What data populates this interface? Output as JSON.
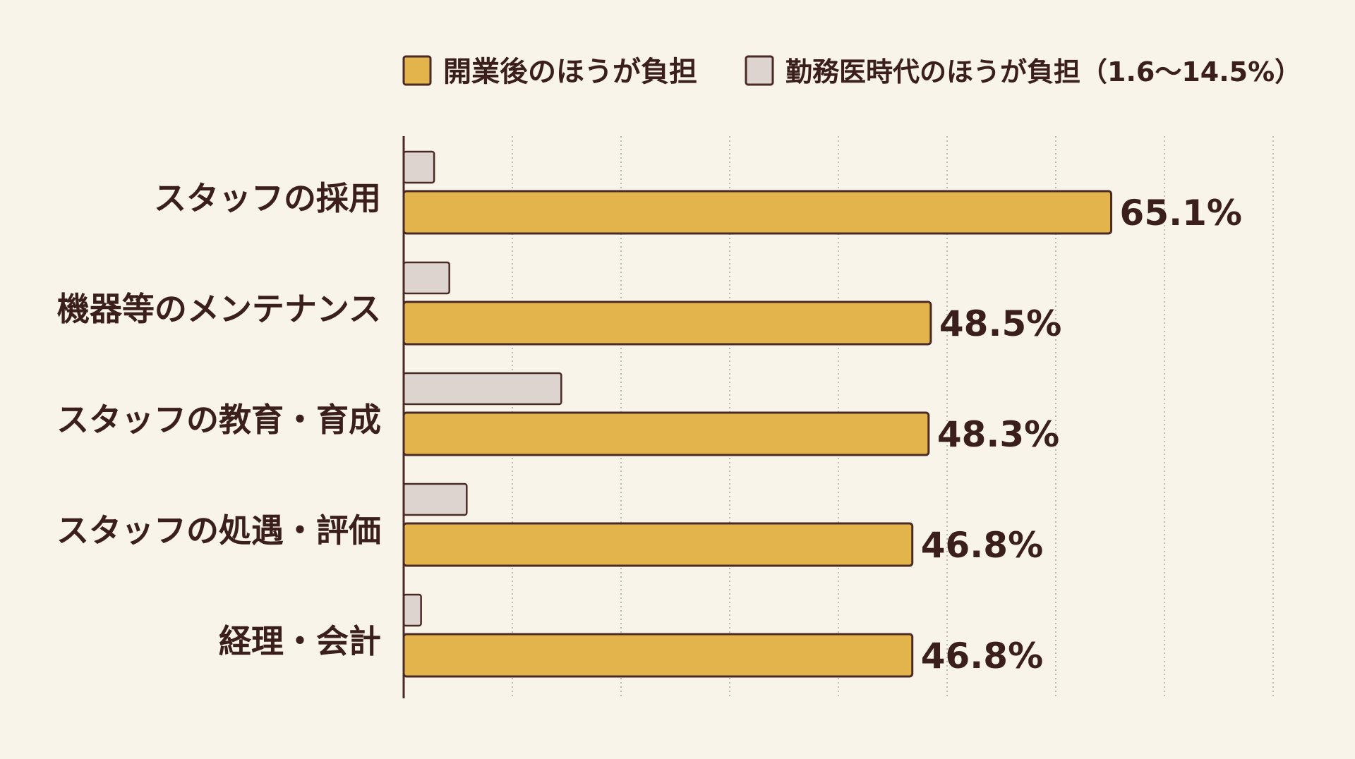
{
  "colors": {
    "background": "#f9f4ea",
    "after_opening": "#e3b44c",
    "employed_doctor": "#ddd4cf",
    "outline": "#4a2a26",
    "text": "#3a1f1c",
    "grid": "#a9a39b"
  },
  "legend": {
    "items": [
      {
        "label": "開業後のほうが負担",
        "color": "#e3b44c"
      },
      {
        "label": "勤務医時代のほうが負担（1.6〜14.5%）",
        "color": "#ddd4cf"
      }
    ]
  },
  "chart_data": {
    "type": "bar",
    "orientation": "horizontal",
    "title": "",
    "xlabel": "",
    "ylabel": "",
    "xlim": [
      0,
      80
    ],
    "grid": true,
    "legend_position": "top",
    "categories": [
      "スタッフの採用",
      "機器等のメンテナンス",
      "スタッフの教育・育成",
      "スタッフの処遇・評価",
      "経理・会計"
    ],
    "series": [
      {
        "name": "勤務医時代のほうが負担（1.6〜14.5%）",
        "values": [
          2.8,
          4.2,
          14.5,
          5.8,
          1.6
        ]
      },
      {
        "name": "開業後のほうが負担",
        "values": [
          65.1,
          48.5,
          48.3,
          46.8,
          46.8
        ],
        "labels": [
          "65.1%",
          "48.5%",
          "48.3%",
          "46.8%",
          "46.8%"
        ]
      }
    ]
  }
}
